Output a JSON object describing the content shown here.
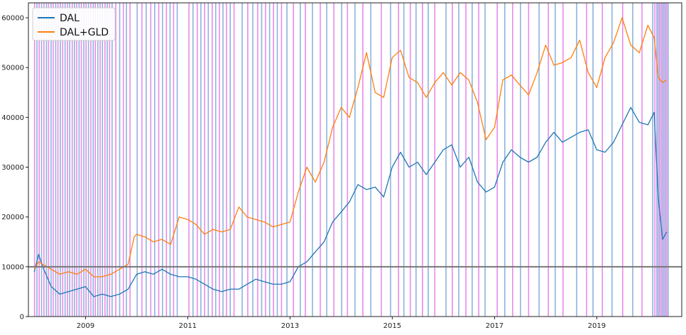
{
  "chart_data": {
    "type": "line",
    "title": "",
    "xlabel": "",
    "ylabel": "",
    "x_range": [
      "2007-11-20",
      "2020-08-30"
    ],
    "ylim": [
      0,
      63000
    ],
    "y_ticks": [
      0,
      10000,
      20000,
      30000,
      40000,
      50000,
      60000
    ],
    "y_tick_labels": [
      "0",
      "10000",
      "20000",
      "30000",
      "40000",
      "50000",
      "60000"
    ],
    "x_ticks": [
      "2009-01-01",
      "2011-01-01",
      "2013-01-01",
      "2015-01-01",
      "2017-01-01",
      "2019-01-01"
    ],
    "x_tick_labels": [
      "2009",
      "2011",
      "2013",
      "2015",
      "2017",
      "2019"
    ],
    "legend_position": "top-left",
    "grid": false,
    "reference_line": {
      "y": 10000,
      "color": "#777777"
    },
    "series": [
      {
        "name": "DAL",
        "color": "#1f77b4",
        "x": [
          "2008-01-01",
          "2008-02-01",
          "2008-03-01",
          "2008-05-01",
          "2008-07-01",
          "2008-09-01",
          "2008-11-01",
          "2009-01-01",
          "2009-03-01",
          "2009-05-01",
          "2009-07-01",
          "2009-09-01",
          "2009-11-01",
          "2010-01-01",
          "2010-03-01",
          "2010-05-01",
          "2010-07-01",
          "2010-09-01",
          "2010-11-01",
          "2011-01-01",
          "2011-03-01",
          "2011-05-01",
          "2011-07-01",
          "2011-09-01",
          "2011-11-01",
          "2012-01-01",
          "2012-03-01",
          "2012-05-01",
          "2012-07-01",
          "2012-09-01",
          "2012-11-01",
          "2013-01-01",
          "2013-03-01",
          "2013-05-01",
          "2013-07-01",
          "2013-09-01",
          "2013-11-01",
          "2014-01-01",
          "2014-03-01",
          "2014-05-01",
          "2014-07-01",
          "2014-09-01",
          "2014-11-01",
          "2015-01-01",
          "2015-03-01",
          "2015-05-01",
          "2015-07-01",
          "2015-09-01",
          "2015-11-01",
          "2016-01-01",
          "2016-03-01",
          "2016-05-01",
          "2016-07-01",
          "2016-09-01",
          "2016-11-01",
          "2017-01-01",
          "2017-03-01",
          "2017-05-01",
          "2017-07-01",
          "2017-09-01",
          "2017-11-01",
          "2018-01-01",
          "2018-03-01",
          "2018-05-01",
          "2018-07-01",
          "2018-09-01",
          "2018-11-01",
          "2019-01-01",
          "2019-03-01",
          "2019-05-01",
          "2019-07-01",
          "2019-09-01",
          "2019-11-01",
          "2020-01-01",
          "2020-02-15",
          "2020-03-15",
          "2020-04-15",
          "2020-05-15"
        ],
        "values": [
          9000,
          12500,
          10000,
          6000,
          4500,
          5000,
          5500,
          6000,
          4000,
          4500,
          4000,
          4500,
          5500,
          8500,
          9000,
          8500,
          9500,
          8500,
          8000,
          8000,
          7500,
          6500,
          5500,
          5000,
          5500,
          5500,
          6500,
          7500,
          7000,
          6500,
          6500,
          7000,
          10000,
          11000,
          13000,
          15000,
          19000,
          21000,
          23000,
          26500,
          25500,
          26000,
          24000,
          30000,
          33000,
          30000,
          31000,
          28500,
          31000,
          33500,
          34500,
          30000,
          32000,
          27000,
          25000,
          26000,
          31000,
          33500,
          32000,
          31000,
          32000,
          35000,
          37000,
          35000,
          36000,
          37000,
          37500,
          33500,
          33000,
          35000,
          38500,
          42000,
          39000,
          38500,
          41000,
          24000,
          15500,
          17000
        ]
      },
      {
        "name": "DAL+GLD",
        "color": "#ff7f0e",
        "x": [
          "2008-01-01",
          "2008-02-01",
          "2008-03-01",
          "2008-05-01",
          "2008-07-01",
          "2008-09-01",
          "2008-11-01",
          "2009-01-01",
          "2009-03-01",
          "2009-05-01",
          "2009-07-01",
          "2009-09-01",
          "2009-11-01",
          "2009-12-15",
          "2010-01-01",
          "2010-03-01",
          "2010-05-01",
          "2010-07-01",
          "2010-09-01",
          "2010-11-01",
          "2011-01-01",
          "2011-03-01",
          "2011-05-01",
          "2011-07-01",
          "2011-09-01",
          "2011-11-01",
          "2012-01-01",
          "2012-03-01",
          "2012-05-01",
          "2012-07-01",
          "2012-09-01",
          "2012-11-01",
          "2013-01-01",
          "2013-03-01",
          "2013-05-01",
          "2013-07-01",
          "2013-09-01",
          "2013-11-01",
          "2014-01-01",
          "2014-03-01",
          "2014-05-01",
          "2014-07-01",
          "2014-09-01",
          "2014-11-01",
          "2015-01-01",
          "2015-03-01",
          "2015-05-01",
          "2015-07-01",
          "2015-09-01",
          "2015-11-01",
          "2016-01-01",
          "2016-03-01",
          "2016-05-01",
          "2016-07-01",
          "2016-09-01",
          "2016-11-01",
          "2017-01-01",
          "2017-03-01",
          "2017-05-01",
          "2017-07-01",
          "2017-09-01",
          "2017-11-01",
          "2018-01-01",
          "2018-03-01",
          "2018-05-01",
          "2018-07-01",
          "2018-09-01",
          "2018-11-01",
          "2019-01-01",
          "2019-03-01",
          "2019-05-01",
          "2019-07-01",
          "2019-09-01",
          "2019-11-01",
          "2020-01-01",
          "2020-02-15",
          "2020-03-15",
          "2020-04-15",
          "2020-05-15"
        ],
        "values": [
          9500,
          11000,
          10500,
          9500,
          8500,
          9000,
          8500,
          9500,
          8000,
          8000,
          8500,
          9500,
          10500,
          16000,
          16500,
          16000,
          15000,
          15500,
          14500,
          20000,
          19500,
          18500,
          16500,
          17500,
          17000,
          17500,
          22000,
          20000,
          19500,
          19000,
          18000,
          18500,
          19000,
          25000,
          30000,
          27000,
          31000,
          38000,
          42000,
          40000,
          46000,
          53000,
          45000,
          44000,
          52000,
          53500,
          48000,
          47000,
          44000,
          47000,
          49000,
          46500,
          49000,
          47500,
          43000,
          35500,
          38000,
          47500,
          48500,
          46500,
          44500,
          49000,
          54500,
          50500,
          51000,
          52000,
          55500,
          49000,
          46000,
          52000,
          55000,
          60000,
          54500,
          53000,
          58500,
          56000,
          48000,
          47000,
          47500
        ]
      }
    ],
    "event_markers": {
      "colors": [
        "#e377e6",
        "#7aa6d6"
      ],
      "dates": [
        "2008-01-03",
        "2008-01-20",
        "2008-02-05",
        "2008-02-22",
        "2008-03-10",
        "2008-03-28",
        "2008-04-12",
        "2008-04-30",
        "2008-05-15",
        "2008-06-02",
        "2008-06-18",
        "2008-07-05",
        "2008-07-22",
        "2008-08-08",
        "2008-08-25",
        "2008-09-10",
        "2008-09-28",
        "2008-10-14",
        "2008-10-30",
        "2008-11-16",
        "2008-12-02",
        "2008-12-20",
        "2009-01-05",
        "2009-01-22",
        "2009-02-08",
        "2009-02-25",
        "2009-03-12",
        "2009-03-30",
        "2009-04-15",
        "2009-05-02",
        "2009-05-20",
        "2009-06-05",
        "2009-06-22",
        "2009-07-10",
        "2009-08-05",
        "2009-09-02",
        "2009-09-28",
        "2009-10-20",
        "2009-11-15",
        "2010-01-05",
        "2010-02-08",
        "2010-03-10",
        "2010-04-12",
        "2010-05-10",
        "2010-06-08",
        "2010-07-05",
        "2010-08-02",
        "2010-08-28",
        "2010-09-22",
        "2010-10-18",
        "2011-01-10",
        "2011-02-08",
        "2011-03-10",
        "2011-04-05",
        "2011-05-02",
        "2011-05-28",
        "2011-06-25",
        "2011-07-20",
        "2011-08-15",
        "2011-09-10",
        "2011-10-05",
        "2011-11-01",
        "2011-11-28",
        "2012-01-25",
        "2012-03-05",
        "2012-04-10",
        "2012-05-15",
        "2012-06-12",
        "2012-07-10",
        "2012-08-08",
        "2012-09-05",
        "2012-10-02",
        "2012-11-01",
        "2012-12-10",
        "2013-01-25",
        "2013-03-15",
        "2013-04-20",
        "2013-06-10",
        "2013-08-05",
        "2013-09-20",
        "2013-11-10",
        "2014-01-05",
        "2014-02-15",
        "2014-04-10",
        "2014-06-05",
        "2014-08-01",
        "2014-10-15",
        "2014-12-20",
        "2015-02-15",
        "2015-03-25",
        "2015-05-10",
        "2015-06-20",
        "2015-08-05",
        "2015-09-15",
        "2015-11-01",
        "2016-01-20",
        "2016-03-05",
        "2016-04-20",
        "2016-06-10",
        "2016-07-25",
        "2016-09-10",
        "2016-10-25",
        "2017-01-20",
        "2017-03-15",
        "2017-05-10",
        "2017-07-05",
        "2017-09-01",
        "2017-11-15",
        "2018-01-20",
        "2018-03-10",
        "2018-05-05",
        "2018-08-10",
        "2018-10-20",
        "2018-12-05",
        "2019-02-10",
        "2019-04-20",
        "2019-07-05",
        "2019-09-15",
        "2019-11-20",
        "2020-02-05",
        "2020-02-20",
        "2020-03-05",
        "2020-03-15",
        "2020-03-25",
        "2020-04-05",
        "2020-04-15",
        "2020-04-25",
        "2020-05-05",
        "2020-05-15",
        "2020-05-25"
      ]
    }
  }
}
